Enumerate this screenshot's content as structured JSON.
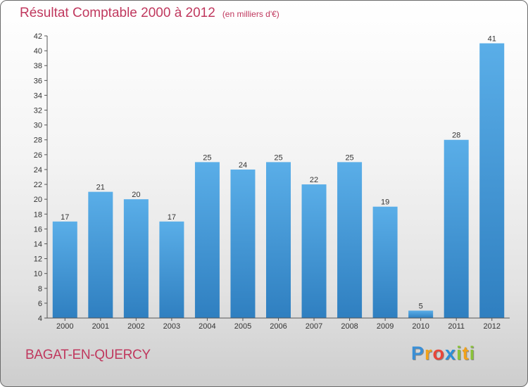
{
  "header": {
    "title": "Résultat Comptable 2000 à 2012",
    "subtitle": "(en milliers d'€)"
  },
  "footer": {
    "commune": "BAGAT-EN-QUERCY",
    "logo_letters": [
      "P",
      "r",
      "o",
      "x",
      "i",
      "t",
      "i"
    ]
  },
  "colors": {
    "bar_light": "#5aaee8",
    "bar_dark": "#2f7fc0",
    "title": "#c0385e",
    "logo": [
      "#3a8fd6",
      "#f2a21a",
      "#e8463a",
      "#2a8fd8",
      "#8ac23a",
      "#f2a21a",
      "#8ac23a"
    ]
  },
  "chart_data": {
    "type": "bar",
    "title": "Résultat Comptable 2000 à 2012",
    "subtitle": "(en milliers d'€)",
    "categories": [
      "2000",
      "2001",
      "2002",
      "2003",
      "2004",
      "2005",
      "2006",
      "2007",
      "2008",
      "2009",
      "2010",
      "2011",
      "2012"
    ],
    "values": [
      17,
      21,
      20,
      17,
      25,
      24,
      25,
      22,
      25,
      19,
      5,
      28,
      41
    ],
    "ylim": [
      4,
      42
    ],
    "yticks": [
      4,
      6,
      8,
      10,
      12,
      14,
      16,
      18,
      20,
      22,
      24,
      26,
      28,
      30,
      32,
      34,
      36,
      38,
      40,
      42
    ],
    "grid": false,
    "legend": "none",
    "data_labels": true
  }
}
